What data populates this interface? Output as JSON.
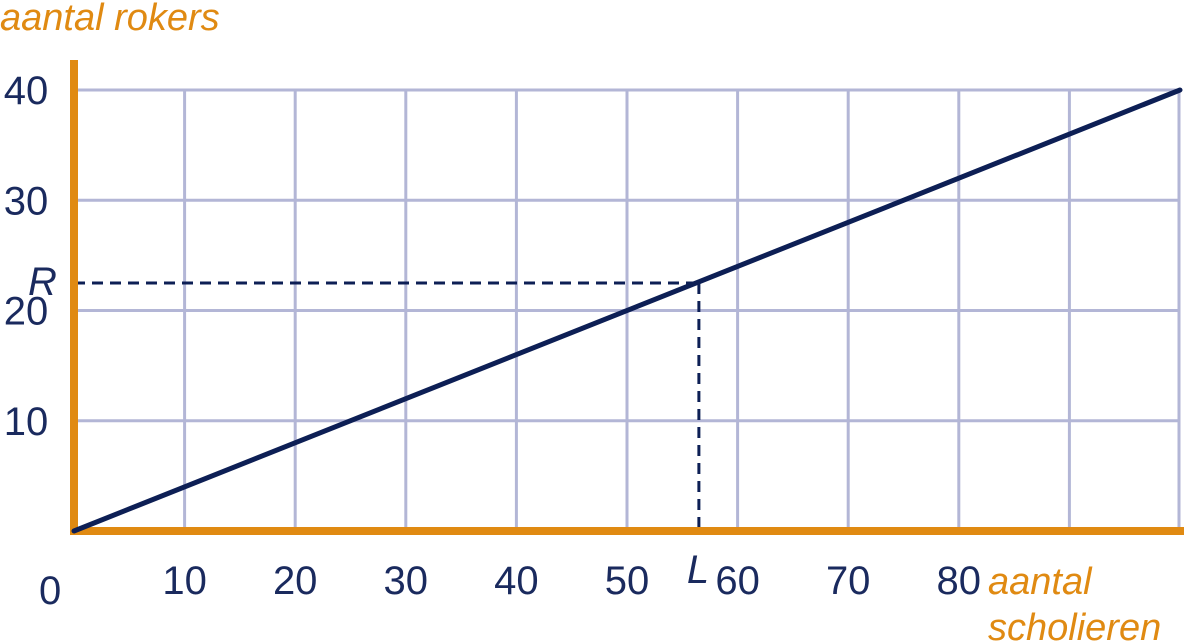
{
  "chart_data": {
    "type": "line",
    "ylabel": "aantal rokers",
    "xlabel_line1": "aantal",
    "xlabel_line2": "scholieren",
    "origin_label": "0",
    "xlim": [
      0,
      100
    ],
    "ylim": [
      0,
      40
    ],
    "x_ticks": [
      10,
      20,
      30,
      40,
      50,
      60,
      70,
      80
    ],
    "y_ticks": [
      10,
      20,
      30,
      40
    ],
    "grid": true,
    "series": [
      {
        "x": [
          0,
          100
        ],
        "y": [
          0,
          40
        ]
      }
    ],
    "markers": {
      "R": {
        "label": "R",
        "value": 22.5
      },
      "L": {
        "label": "L",
        "value": 56.5
      }
    }
  },
  "colors": {
    "axis": "#e08a12",
    "grid": "#b3b6d6",
    "line": "#0d1f55",
    "text": "#1a2a5e"
  }
}
